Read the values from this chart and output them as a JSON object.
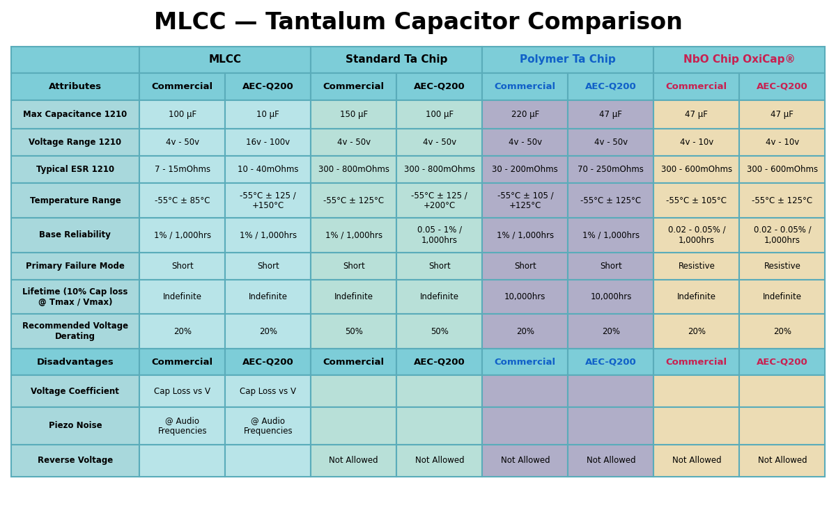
{
  "title": "MLCC — Tantalum Capacitor Comparison",
  "title_fontsize": 24,
  "bg_color": "#ffffff",
  "border_color": "#5aacba",
  "header_bg": "#7dcdd8",
  "mlcc_data_bg": "#b8e4e8",
  "std_data_bg": "#b8e0d8",
  "poly_data_bg": "#b0aec8",
  "nbo_data_bg": "#ecdcb4",
  "label_col_bg": "#a8d8dc",
  "header2_labels": [
    "Attributes",
    "Commercial",
    "AEC-Q200",
    "Commercial",
    "AEC-Q200",
    "Commercial",
    "AEC-Q200",
    "Commercial",
    "AEC-Q200"
  ],
  "header2_text_colors": [
    "#000000",
    "#000000",
    "#000000",
    "#000000",
    "#000000",
    "#1060c8",
    "#1060c8",
    "#c82050",
    "#c82050"
  ],
  "group_labels": [
    "MLCC",
    "Standard Ta Chip",
    "Polymer Ta Chip",
    "NbO Chip OxiCap®"
  ],
  "group_text_colors": [
    "#000000",
    "#000000",
    "#1060c8",
    "#c82050"
  ],
  "rows_attributes": [
    {
      "label": "Max Capacitance 1210",
      "values": [
        "100 µF",
        "10 µF",
        "150 µF",
        "100 µF",
        "220 µF",
        "47 µF",
        "47 µF",
        "47 µF"
      ]
    },
    {
      "label": "Voltage Range 1210",
      "values": [
        "4v - 50v",
        "16v - 100v",
        "4v - 50v",
        "4v - 50v",
        "4v - 50v",
        "4v - 50v",
        "4v - 10v",
        "4v - 10v"
      ]
    },
    {
      "label": "Typical ESR 1210",
      "values": [
        "7 - 15mOhms",
        "10 - 40mOhms",
        "300 - 800mOhms",
        "300 - 800mOhms",
        "30 - 200mOhms",
        "70 - 250mOhms",
        "300 - 600mOhms",
        "300 - 600mOhms"
      ]
    },
    {
      "label": "Temperature Range",
      "values": [
        "-55°C ± 85°C",
        "-55°C ± 125 /\n+150°C",
        "-55°C ± 125°C",
        "-55°C ± 125 /\n+200°C",
        "-55°C ± 105 /\n+125°C",
        "-55°C ± 125°C",
        "-55°C ± 105°C",
        "-55°C ± 125°C"
      ]
    },
    {
      "label": "Base Reliability",
      "values": [
        "1% / 1,000hrs",
        "1% / 1,000hrs",
        "1% / 1,000hrs",
        "0.05 - 1% /\n1,000hrs",
        "1% / 1,000hrs",
        "1% / 1,000hrs",
        "0.02 - 0.05% /\n1,000hrs",
        "0.02 - 0.05% /\n1,000hrs"
      ]
    },
    {
      "label": "Primary Failure Mode",
      "values": [
        "Short",
        "Short",
        "Short",
        "Short",
        "Short",
        "Short",
        "Resistive",
        "Resistive"
      ]
    },
    {
      "label": "Lifetime (10% Cap loss\n@ Tmax / Vmax)",
      "values": [
        "Indefinite",
        "Indefinite",
        "Indefinite",
        "Indefinite",
        "10,000hrs",
        "10,000hrs",
        "Indefinite",
        "Indefinite"
      ]
    },
    {
      "label": "Recommended Voltage\nDerating",
      "values": [
        "20%",
        "20%",
        "50%",
        "50%",
        "20%",
        "20%",
        "20%",
        "20%"
      ]
    }
  ],
  "rows_disadvantages": [
    {
      "label": "Voltage Coefficient",
      "values": [
        "Cap Loss vs V",
        "Cap Loss vs V",
        "",
        "",
        "",
        "",
        "",
        ""
      ]
    },
    {
      "label": "Piezo Noise",
      "values": [
        "@ Audio\nFrequencies",
        "@ Audio\nFrequencies",
        "",
        "",
        "",
        "",
        "",
        ""
      ]
    },
    {
      "label": "Reverse Voltage",
      "values": [
        "",
        "",
        "Not Allowed",
        "Not Allowed",
        "Not Allowed",
        "Not Allowed",
        "Not Allowed",
        "Not Allowed"
      ]
    }
  ],
  "disadv_sublabels": [
    "Commercial",
    "AEC-Q200",
    "Commercial",
    "AEC-Q200",
    "Commercial",
    "AEC-Q200",
    "Commercial",
    "AEC-Q200"
  ],
  "disadv_subtext_colors": [
    "#000000",
    "#000000",
    "#000000",
    "#000000",
    "#1060c8",
    "#1060c8",
    "#c82050",
    "#c82050"
  ]
}
